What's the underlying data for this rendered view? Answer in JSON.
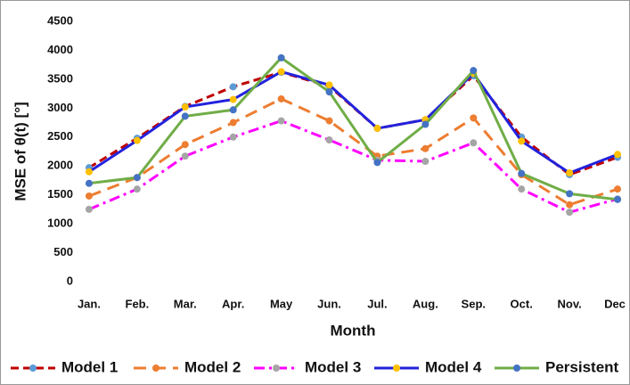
{
  "chart_data": {
    "type": "line",
    "x_label": "Month",
    "y_label": "MSE of θ(t) [°]",
    "categories": [
      "Jan.",
      "Feb.",
      "Mar.",
      "Apr.",
      "May",
      "Jun.",
      "Jul.",
      "Aug.",
      "Sep.",
      "Oct.",
      "Nov.",
      "Dec"
    ],
    "ylim": [
      0,
      4500
    ],
    "yticks": [
      0,
      500,
      1000,
      1500,
      2000,
      2500,
      3000,
      3500,
      4000,
      4500
    ],
    "grid": false,
    "legend": "bottom",
    "series": [
      {
        "name": "Model 1",
        "color": "#c00000",
        "marker_color": "#5b9bd5",
        "dash": "dashed",
        "values": [
          1970,
          2480,
          3030,
          3370,
          3620,
          3380,
          2650,
          2800,
          3560,
          2500,
          1850,
          2150
        ]
      },
      {
        "name": "Model 2",
        "color": "#ed7d31",
        "marker_color": "#ed7d31",
        "dash": "longdash",
        "values": [
          1480,
          1800,
          2370,
          2750,
          3160,
          2780,
          2170,
          2300,
          2830,
          1850,
          1330,
          1600
        ]
      },
      {
        "name": "Model 3",
        "color": "#ff00ff",
        "marker_color": "#a5a5a5",
        "dash": "dashdot",
        "values": [
          1250,
          1600,
          2170,
          2500,
          2780,
          2450,
          2100,
          2080,
          2400,
          1600,
          1200,
          1430
        ]
      },
      {
        "name": "Model 4",
        "color": "#2222dd",
        "marker_color": "#ffc000",
        "dash": "solid",
        "values": [
          1900,
          2440,
          3020,
          3150,
          3630,
          3400,
          2650,
          2800,
          3600,
          2430,
          1880,
          2200
        ]
      },
      {
        "name": "Persistent",
        "color": "#70ad47",
        "marker_color": "#4472c4",
        "dash": "solid",
        "values": [
          1700,
          1800,
          2860,
          2970,
          3870,
          3280,
          2060,
          2720,
          3650,
          1870,
          1520,
          1420
        ]
      }
    ]
  }
}
